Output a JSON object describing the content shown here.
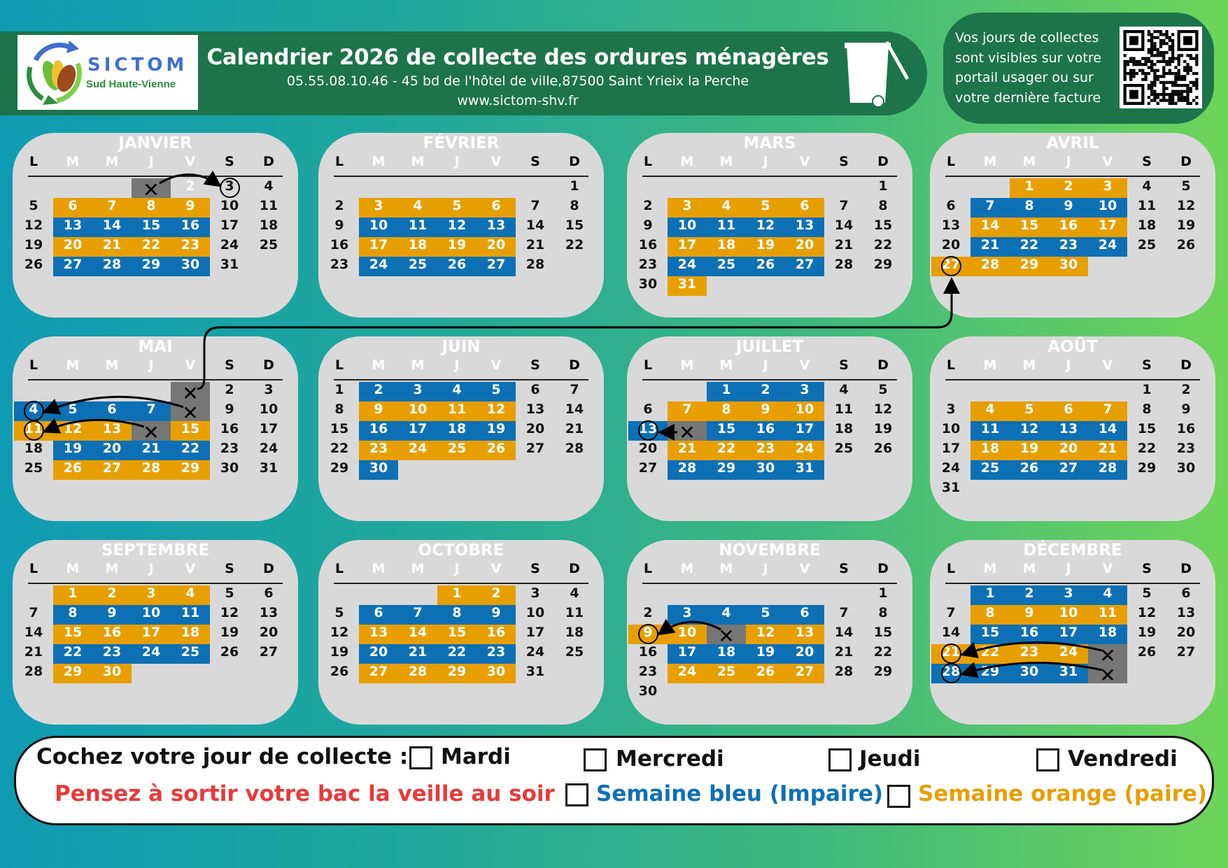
{
  "header": {
    "logo_name": "SICTOM",
    "logo_sub": "Sud Haute-Vienne",
    "title": "Calendrier 2026 de collecte des ordures ménagères",
    "contact": "05.55.08.10.46 - 45 bd de l'hôtel de ville,87500 Saint Yrieix la Perche",
    "website": "www.sictom-shv.fr",
    "info": "Vos jours de collectes sont visibles sur votre portail usager ou sur votre dernière facture"
  },
  "colors": {
    "orange": "#e79f00",
    "blue": "#0e70b4",
    "cancelled": "#767676",
    "card": "#d9d9d9",
    "header": "#1d744a",
    "warning": "#e83a3a"
  },
  "weekdays": [
    "L",
    "M",
    "M",
    "J",
    "V",
    "S",
    "D"
  ],
  "legend_codes": {
    "o": "orange week",
    "b": "blue week",
    "x": "cancelled (holiday)",
    "c": "replacement day circled",
    "w": "white text"
  },
  "months": [
    {
      "name": "JANVIER",
      "cells": [
        "",
        "",
        "",
        "x",
        "2|w",
        "3|c",
        "4",
        "5",
        "6|o",
        "7|o",
        "8|o",
        "9|o",
        "10",
        "11",
        "12",
        "13|b",
        "14|b",
        "15|b",
        "16|b",
        "17",
        "18",
        "19",
        "20|o",
        "21|o",
        "22|o",
        "23|o",
        "24",
        "25",
        "26",
        "27|b",
        "28|b",
        "29|b",
        "30|b",
        "31"
      ]
    },
    {
      "name": "FÉVRIER",
      "cells": [
        "",
        "",
        "",
        "",
        "",
        "",
        "1",
        "2",
        "3|o",
        "4|o",
        "5|o",
        "6|o",
        "7",
        "8",
        "9",
        "10|b",
        "11|b",
        "12|b",
        "13|b",
        "14",
        "15",
        "16",
        "17|o",
        "18|o",
        "19|o",
        "20|o",
        "21",
        "22",
        "23",
        "24|b",
        "25|b",
        "26|b",
        "27|b",
        "28"
      ]
    },
    {
      "name": "MARS",
      "cells": [
        "",
        "",
        "",
        "",
        "",
        "",
        "1",
        "2",
        "3|o",
        "4|o",
        "5|o",
        "6|o",
        "7",
        "8",
        "9",
        "10|b",
        "11|b",
        "12|b",
        "13|b",
        "14",
        "15",
        "16",
        "17|o",
        "18|o",
        "19|o",
        "20|o",
        "21",
        "22",
        "23",
        "24|b",
        "25|b",
        "26|b",
        "27|b",
        "28",
        "29",
        "30",
        "31|o"
      ]
    },
    {
      "name": "AVRIL",
      "cells": [
        "",
        "",
        "1|o",
        "2|o",
        "3|o",
        "4",
        "5",
        "6",
        "7|b",
        "8|b",
        "9|b",
        "10|b",
        "11",
        "12",
        "13",
        "14|o",
        "15|o",
        "16|o",
        "17|o",
        "18",
        "19",
        "20",
        "21|b",
        "22|b",
        "23|b",
        "24|b",
        "25",
        "26",
        "27|oc",
        "28|o",
        "29|o",
        "30|o"
      ]
    },
    {
      "name": "MAI",
      "cells": [
        "",
        "",
        "",
        "",
        "x",
        "2",
        "3",
        "4|bc",
        "5|b",
        "6|b",
        "7|b",
        "x",
        "9",
        "10",
        "11|oc",
        "12|o",
        "13|o",
        "x",
        "15|o",
        "16",
        "17",
        "18",
        "19|b",
        "20|b",
        "21|b",
        "22|b",
        "23",
        "24",
        "25",
        "26|o",
        "27|o",
        "28|o",
        "29|o",
        "30",
        "31"
      ]
    },
    {
      "name": "JUIN",
      "cells": [
        "1",
        "2|b",
        "3|b",
        "4|b",
        "5|b",
        "6",
        "7",
        "8",
        "9|o",
        "10|o",
        "11|o",
        "12|o",
        "13",
        "14",
        "15",
        "16|b",
        "17|b",
        "18|b",
        "19|b",
        "20",
        "21",
        "22",
        "23|o",
        "24|o",
        "25|o",
        "26|o",
        "27",
        "28",
        "29",
        "30|b"
      ]
    },
    {
      "name": "JUILLET",
      "cells": [
        "",
        "",
        "1|b",
        "2|b",
        "3|b",
        "4",
        "5",
        "6",
        "7|o",
        "8|o",
        "9|o",
        "10|o",
        "11",
        "12",
        "13|bc",
        "x",
        "15|b",
        "16|b",
        "17|b",
        "18",
        "19",
        "20",
        "21|o",
        "22|o",
        "23|o",
        "24|o",
        "25",
        "26",
        "27",
        "28|b",
        "29|b",
        "30|b",
        "31|b"
      ]
    },
    {
      "name": "AOÛT",
      "cells": [
        "",
        "",
        "",
        "",
        "",
        "1",
        "2",
        "3",
        "4|o",
        "5|o",
        "6|o",
        "7|o",
        "8",
        "9",
        "10",
        "11|b",
        "12|b",
        "13|b",
        "14|b",
        "15",
        "16",
        "17",
        "18|o",
        "19|o",
        "20|o",
        "21|o",
        "22",
        "23",
        "24",
        "25|b",
        "26|b",
        "27|b",
        "28|b",
        "29",
        "30",
        "31"
      ]
    },
    {
      "name": "SEPTEMBRE",
      "cells": [
        "",
        "1|o",
        "2|o",
        "3|o",
        "4|o",
        "5",
        "6",
        "7",
        "8|b",
        "9|b",
        "10|b",
        "11|b",
        "12",
        "13",
        "14",
        "15|o",
        "16|o",
        "17|o",
        "18|o",
        "19",
        "20",
        "21",
        "22|b",
        "23|b",
        "24|b",
        "25|b",
        "26",
        "27",
        "28",
        "29|o",
        "30|o"
      ]
    },
    {
      "name": "OCTOBRE",
      "cells": [
        "",
        "",
        "",
        "1|o",
        "2|o",
        "3",
        "4",
        "5",
        "6|b",
        "7|b",
        "8|b",
        "9|b",
        "10",
        "11",
        "12",
        "13|o",
        "14|o",
        "15|o",
        "16|o",
        "17",
        "18",
        "19",
        "20|b",
        "21|b",
        "22|b",
        "23|b",
        "24",
        "25",
        "26",
        "27|o",
        "28|o",
        "29|o",
        "30|o",
        "31"
      ]
    },
    {
      "name": "NOVEMBRE",
      "cells": [
        "",
        "",
        "",
        "",
        "",
        "",
        "1",
        "2",
        "3|b",
        "4|b",
        "5|b",
        "6|b",
        "7",
        "8",
        "9|oc",
        "10|o",
        "x",
        "12|o",
        "13|o",
        "14",
        "15",
        "16",
        "17|b",
        "18|b",
        "19|b",
        "20|b",
        "21",
        "22",
        "23",
        "24|o",
        "25|o",
        "26|o",
        "27|o",
        "28",
        "29",
        "30"
      ]
    },
    {
      "name": "DÉCEMBRE",
      "cells": [
        "",
        "1|b",
        "2|b",
        "3|b",
        "4|b",
        "5",
        "6",
        "7",
        "8|o",
        "9|o",
        "10|o",
        "11|o",
        "12",
        "13",
        "14",
        "15|b",
        "16|b",
        "17|b",
        "18|b",
        "19",
        "20",
        "21|oc",
        "22|o",
        "23|o",
        "24|o",
        "x",
        "26",
        "27",
        "28|bc",
        "29|b",
        "30|b",
        "31|b",
        "x"
      ]
    }
  ],
  "footer": {
    "prompt": "Cochez votre jour de collecte :",
    "days": [
      "Mardi",
      "Mercredi",
      "Jeudi",
      "Vendredi"
    ],
    "reminder": "Pensez à sortir votre bac la veille au soir",
    "blue_week": "Semaine bleu (Impaire)",
    "orange_week": "Semaine orange (paire)"
  }
}
